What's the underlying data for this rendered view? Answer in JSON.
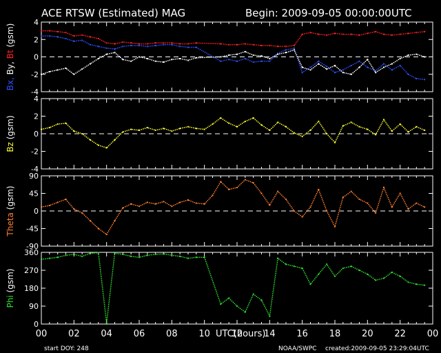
{
  "header": {
    "title": "ACE RTSW (Estimated) MAG",
    "begin": "Begin: 2009-09-05 00:00:00UTC"
  },
  "footer": {
    "start_doy": "start DOY:  248",
    "xlabel": "UTC(hours)",
    "agency": "NOAA/SWPC",
    "created": "created:2009-09-05 23:29:04UTC"
  },
  "colors": {
    "background": "#000000",
    "frame": "#ffffff",
    "bx": "#3050ff",
    "by": "#ffffff",
    "bt": "#ff2020",
    "bz": "#ffff30",
    "theta": "#ff8030",
    "phi": "#30e030"
  },
  "chart_data": {
    "type": "scatter",
    "x_ticks": [
      "00",
      "02",
      "04",
      "06",
      "08",
      "10",
      "12",
      "14",
      "16",
      "18",
      "20",
      "22",
      "00"
    ],
    "xlim": [
      0,
      24
    ],
    "panels": [
      {
        "ylabel_parts": [
          {
            "text": "Bx,",
            "color": "#3050ff"
          },
          {
            "text": "By,",
            "color": "#ffffff"
          },
          {
            "text": "Bt",
            "color": "#ff2020"
          },
          {
            "text": "(gsm)",
            "color": "#ffffff"
          }
        ],
        "ylim": [
          -4,
          4
        ],
        "yticks": [
          4,
          2,
          0,
          -2,
          -4
        ],
        "zero_line": true,
        "series": [
          {
            "name": "Bt",
            "color": "#ff2020",
            "x": [
              0,
              0.5,
              1,
              1.5,
              2,
              2.5,
              3,
              3.5,
              4,
              4.5,
              5,
              5.5,
              6,
              6.5,
              7,
              7.5,
              8,
              8.5,
              9,
              9.5,
              11,
              11.5,
              12,
              12.5,
              13,
              13.5,
              14,
              14.5,
              15,
              15.5,
              16,
              16.5,
              17,
              17.5,
              18,
              18.5,
              19,
              19.5,
              20,
              20.5,
              21,
              21.5,
              22,
              22.5,
              23,
              23.5
            ],
            "y": [
              3.0,
              3.0,
              2.9,
              2.8,
              2.4,
              2.5,
              2.3,
              2.1,
              1.6,
              1.5,
              1.7,
              1.6,
              1.5,
              1.5,
              1.6,
              1.6,
              1.6,
              1.5,
              1.5,
              1.6,
              1.5,
              1.4,
              1.4,
              1.5,
              1.4,
              1.3,
              1.3,
              1.2,
              1.2,
              1.3,
              2.6,
              2.8,
              2.6,
              2.5,
              2.7,
              2.6,
              2.6,
              2.5,
              2.7,
              2.9,
              2.6,
              2.5,
              2.6,
              2.7,
              2.8,
              2.9
            ]
          },
          {
            "name": "Bx",
            "color": "#3050ff",
            "x": [
              0,
              0.5,
              1,
              1.5,
              2,
              2.5,
              3,
              3.5,
              4,
              4.5,
              5,
              5.5,
              6,
              6.5,
              7,
              7.5,
              8,
              8.5,
              9,
              9.5,
              11,
              11.5,
              12,
              12.5,
              13,
              13.5,
              14,
              14.5,
              15,
              15.5,
              16,
              16.5,
              17,
              17.5,
              18,
              18.5,
              19,
              19.5,
              20,
              20.5,
              21,
              21.5,
              22,
              22.5,
              23,
              23.5
            ],
            "y": [
              2.4,
              2.4,
              2.3,
              2.1,
              1.8,
              1.9,
              1.4,
              1.2,
              1.0,
              0.9,
              1.2,
              1.3,
              1.3,
              1.2,
              1.3,
              1.4,
              1.4,
              1.2,
              1.1,
              1.1,
              -0.5,
              -0.3,
              -0.5,
              -0.2,
              -0.6,
              -0.5,
              -0.5,
              0.4,
              0.8,
              1.0,
              -1.8,
              -1.2,
              -0.5,
              -1.1,
              -1.8,
              -1.5,
              -1.0,
              -0.5,
              -1.2,
              -1.6,
              -0.8,
              -1.5,
              -1.0,
              -2.0,
              -2.5,
              -2.6
            ]
          },
          {
            "name": "By",
            "color": "#ffffff",
            "x": [
              0,
              0.5,
              1,
              1.5,
              2,
              2.5,
              3,
              3.5,
              4,
              4.5,
              5,
              5.5,
              6,
              6.5,
              7,
              7.5,
              8,
              8.5,
              9,
              9.5,
              11,
              11.5,
              12,
              12.5,
              13,
              13.5,
              14,
              14.5,
              15,
              15.5,
              16,
              16.5,
              17,
              17.5,
              18,
              18.5,
              19,
              19.5,
              20,
              20.5,
              21,
              21.5,
              22,
              22.5,
              23,
              23.5
            ],
            "y": [
              -2.0,
              -1.7,
              -1.5,
              -1.3,
              -2.0,
              -1.4,
              -0.8,
              -0.2,
              0.3,
              0.5,
              -0.3,
              -0.5,
              0.0,
              -0.2,
              -0.5,
              -0.6,
              -0.3,
              -0.2,
              -0.4,
              -0.1,
              0.0,
              0.2,
              0.3,
              0.6,
              0.2,
              0.1,
              -0.2,
              0.3,
              0.5,
              0.8,
              -1.2,
              -1.5,
              -0.8,
              -1.4,
              -1.0,
              -1.8,
              -2.0,
              -1.2,
              -0.3,
              -1.8,
              -1.2,
              -0.8,
              -0.2,
              0.2,
              0.3,
              0.0
            ]
          }
        ]
      },
      {
        "ylabel_parts": [
          {
            "text": "Bz",
            "color": "#ffff30"
          },
          {
            "text": "(gsm)",
            "color": "#ffffff"
          }
        ],
        "ylim": [
          -4,
          4
        ],
        "yticks": [
          4,
          2,
          0,
          -2,
          -4
        ],
        "zero_line": true,
        "series": [
          {
            "name": "Bz",
            "color": "#ffff30",
            "x": [
              0,
              0.5,
              1,
              1.5,
              2,
              2.5,
              3,
              3.5,
              4,
              4.5,
              5,
              5.5,
              6,
              6.5,
              7,
              7.5,
              8,
              8.5,
              9,
              9.5,
              10,
              10.5,
              11,
              11.5,
              12,
              12.5,
              13,
              13.5,
              14,
              14.5,
              15,
              15.5,
              16,
              16.5,
              17,
              17.5,
              18,
              18.5,
              19,
              19.5,
              20,
              20.5,
              21,
              21.5,
              22,
              22.5,
              23,
              23.5
            ],
            "y": [
              0.5,
              0.7,
              1.1,
              1.2,
              0.3,
              0.0,
              -0.7,
              -1.3,
              -1.6,
              -0.7,
              0.2,
              0.5,
              0.4,
              0.7,
              0.4,
              0.6,
              0.3,
              0.6,
              0.8,
              0.6,
              0.5,
              1.1,
              1.8,
              1.2,
              0.8,
              1.4,
              1.8,
              1.0,
              0.4,
              1.3,
              0.8,
              0.1,
              -0.3,
              0.4,
              1.4,
              0.0,
              -1.0,
              0.9,
              1.3,
              0.8,
              0.5,
              -0.1,
              1.6,
              0.3,
              1.1,
              0.2,
              0.8,
              0.4
            ]
          }
        ]
      },
      {
        "ylabel_parts": [
          {
            "text": "Theta",
            "color": "#ff8030"
          },
          {
            "text": "(gsm)",
            "color": "#ffffff"
          }
        ],
        "ylim": [
          -90,
          90
        ],
        "yticks": [
          90,
          45,
          0,
          -45,
          -90
        ],
        "zero_line": true,
        "series": [
          {
            "name": "Theta",
            "color": "#ff8030",
            "x": [
              0,
              0.5,
              1,
              1.5,
              2,
              2.5,
              3,
              3.5,
              4,
              4.5,
              5,
              5.5,
              6,
              6.5,
              7,
              7.5,
              8,
              8.5,
              9,
              9.5,
              10,
              10.5,
              11,
              11.5,
              12,
              12.5,
              13,
              13.5,
              14,
              14.5,
              15,
              15.5,
              16,
              16.5,
              17,
              17.5,
              18,
              18.5,
              19,
              19.5,
              20,
              20.5,
              21,
              21.5,
              22,
              22.5,
              23,
              23.5
            ],
            "y": [
              10,
              14,
              22,
              30,
              5,
              -5,
              -25,
              -45,
              -60,
              -25,
              8,
              18,
              12,
              22,
              18,
              24,
              12,
              22,
              28,
              20,
              18,
              40,
              75,
              55,
              60,
              80,
              72,
              45,
              15,
              50,
              30,
              0,
              -15,
              10,
              55,
              0,
              -40,
              35,
              50,
              30,
              20,
              -5,
              60,
              10,
              45,
              5,
              20,
              10
            ]
          }
        ]
      },
      {
        "ylabel_parts": [
          {
            "text": "Phi",
            "color": "#30e030"
          },
          {
            "text": "(gsm)",
            "color": "#ffffff"
          }
        ],
        "ylim": [
          0,
          360
        ],
        "yticks": [
          360,
          270,
          180,
          90,
          0
        ],
        "zero_line": false,
        "series": [
          {
            "name": "Phi",
            "color": "#30e030",
            "x": [
              0,
              0.5,
              1,
              1.5,
              2,
              2.5,
              3,
              3.5,
              4,
              4.5,
              5,
              5.5,
              6,
              6.5,
              7,
              7.5,
              8,
              8.5,
              9,
              9.5,
              10,
              11,
              11.5,
              12,
              12.5,
              13,
              13.5,
              14,
              14.5,
              15,
              15.5,
              16,
              16.5,
              17,
              17.5,
              18,
              18.5,
              19,
              19.5,
              20,
              20.5,
              21,
              21.5,
              22,
              22.5,
              23,
              23.5
            ],
            "y": [
              325,
              330,
              335,
              345,
              350,
              340,
              355,
              358,
              5,
              355,
              350,
              340,
              335,
              345,
              350,
              352,
              345,
              340,
              330,
              335,
              335,
              100,
              130,
              90,
              60,
              150,
              120,
              40,
              330,
              300,
              290,
              280,
              200,
              250,
              300,
              240,
              280,
              290,
              270,
              250,
              220,
              230,
              260,
              240,
              210,
              200,
              195
            ]
          }
        ]
      }
    ]
  }
}
